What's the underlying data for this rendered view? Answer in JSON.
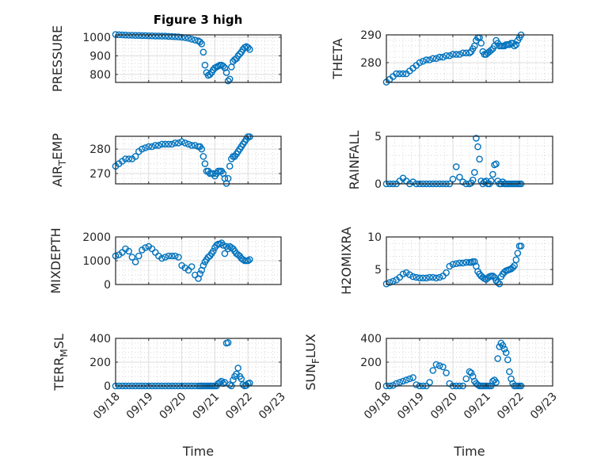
{
  "chart_data": {
    "type": "scatter",
    "title": "Figure 3 high",
    "xlabel": "Time",
    "x_tick_labels": [
      "09/18",
      "09/19",
      "09/20",
      "09/21",
      "09/22",
      "09/23"
    ],
    "x_ticks_days_from_0918": [
      0,
      1,
      2,
      3,
      4,
      5
    ],
    "xlim_days": [
      0,
      5
    ],
    "grid": "on (major + minor)",
    "marker": "open circle",
    "color": "#0072BD",
    "t_days": [
      0,
      0.1,
      0.2,
      0.3,
      0.4,
      0.5,
      0.6,
      0.7,
      0.8,
      0.9,
      1.0,
      1.1,
      1.2,
      1.3,
      1.4,
      1.5,
      1.6,
      1.7,
      1.8,
      1.9,
      2.0,
      2.1,
      2.2,
      2.3,
      2.4,
      2.5,
      2.55,
      2.6,
      2.65,
      2.7,
      2.75,
      2.8,
      2.85,
      2.9,
      2.95,
      3.0,
      3.05,
      3.1,
      3.15,
      3.2,
      3.25,
      3.3,
      3.35,
      3.4,
      3.45,
      3.5,
      3.55,
      3.6,
      3.65,
      3.7,
      3.75,
      3.8,
      3.85,
      3.9,
      3.95,
      4.0,
      4.05
    ],
    "axes": [
      {
        "ylabel": "PRESSURE",
        "ylim": [
          757,
          1013
        ],
        "yticks": [
          800,
          900,
          1000
        ],
        "ytick_labels": [
          "800",
          "900",
          "1000"
        ],
        "values": [
          1015,
          1014,
          1013,
          1012,
          1011,
          1011,
          1010,
          1010,
          1009,
          1009,
          1008,
          1008,
          1007,
          1007,
          1006,
          1006,
          1005,
          1004,
          1003,
          1002,
          1000,
          998,
          995,
          990,
          985,
          980,
          975,
          965,
          920,
          850,
          810,
          795,
          800,
          810,
          825,
          835,
          840,
          845,
          850,
          850,
          845,
          835,
          810,
          765,
          775,
          840,
          870,
          880,
          885,
          900,
          910,
          920,
          935,
          945,
          950,
          945,
          935
        ]
      },
      {
        "ylabel": "THETA",
        "ylim": [
          272.9,
          290
        ],
        "yticks": [
          280,
          290
        ],
        "ytick_labels": [
          "280",
          "290"
        ],
        "values": [
          273,
          274,
          275,
          276,
          276,
          276,
          276,
          277,
          278,
          279,
          280,
          280.5,
          281,
          281,
          281.5,
          281.5,
          282,
          282,
          282.5,
          282.5,
          283,
          283,
          283,
          283.5,
          283.5,
          283.5,
          284,
          285,
          286,
          288,
          289,
          289,
          287,
          284,
          283,
          283,
          283.5,
          284,
          284.5,
          285,
          286,
          288,
          287,
          286,
          286,
          286,
          286,
          286.5,
          286.5,
          286.5,
          287,
          287,
          286,
          286.5,
          288,
          289,
          290
        ]
      },
      {
        "ylabel": "AIR_TEMP",
        "ylim": [
          265.8,
          285.2
        ],
        "yticks": [
          270,
          280
        ],
        "ytick_labels": [
          "270",
          "280"
        ],
        "values": [
          273,
          274,
          275,
          276,
          276,
          276,
          277,
          279,
          280,
          280.5,
          281,
          281,
          281.5,
          281.5,
          282,
          282,
          282,
          282,
          282.5,
          282.5,
          283,
          282.5,
          282,
          281.5,
          281.5,
          281,
          281,
          280,
          277,
          274,
          271,
          271,
          270,
          270,
          270,
          269,
          270,
          271,
          271,
          271,
          270,
          268,
          266,
          268,
          273,
          276,
          277,
          277,
          278,
          279,
          280,
          281,
          282,
          283,
          284,
          285,
          285
        ]
      },
      {
        "ylabel": "RAINFALL",
        "ylim": [
          0,
          5
        ],
        "yticks": [
          0,
          5
        ],
        "ytick_labels": [
          "0",
          "5"
        ],
        "values": [
          0,
          0,
          0,
          0,
          0.3,
          0.6,
          0.3,
          0,
          0.2,
          0,
          0,
          0,
          0,
          0,
          0,
          0,
          0,
          0,
          0,
          0,
          0.5,
          1.8,
          0.7,
          0.2,
          0,
          0,
          0.1,
          0.4,
          1.2,
          4.8,
          3.9,
          2.6,
          0.3,
          0,
          0.2,
          0.3,
          0,
          0,
          0.3,
          1.0,
          2.0,
          2.1,
          0.3,
          0,
          0,
          0.2,
          0,
          0,
          0,
          0,
          0,
          0,
          0,
          0,
          0,
          0,
          0
        ]
      },
      {
        "ylabel": "MIXDEPTH",
        "ylim": [
          0,
          2000
        ],
        "yticks": [
          0,
          1000,
          2000
        ],
        "ytick_labels": [
          "0",
          "1000",
          "2000"
        ],
        "values": [
          1200,
          1250,
          1350,
          1500,
          1400,
          1150,
          950,
          1200,
          1450,
          1550,
          1600,
          1500,
          1350,
          1200,
          1100,
          1150,
          1200,
          1200,
          1200,
          1150,
          800,
          700,
          600,
          750,
          400,
          250,
          450,
          600,
          800,
          950,
          1050,
          1150,
          1200,
          1300,
          1400,
          1550,
          1650,
          1700,
          1700,
          1750,
          1650,
          1300,
          1600,
          1500,
          1600,
          1550,
          1500,
          1400,
          1300,
          1250,
          1200,
          1100,
          1050,
          1000,
          1000,
          1000,
          1050
        ]
      },
      {
        "ylabel": "H2OMIXRA",
        "ylim": [
          2.7,
          10
        ],
        "yticks": [
          5,
          10
        ],
        "ytick_labels": [
          "5",
          "10"
        ],
        "values": [
          2.8,
          3,
          3.2,
          3.4,
          3.8,
          4.3,
          4.5,
          4.2,
          3.9,
          3.8,
          3.7,
          3.7,
          3.7,
          3.8,
          3.8,
          3.7,
          3.8,
          4,
          4.5,
          5.5,
          5.8,
          5.9,
          6,
          6,
          6.1,
          6.1,
          6.1,
          6.2,
          6.2,
          5.5,
          4.7,
          4.3,
          4,
          3.8,
          3.6,
          3.5,
          3.7,
          3.9,
          4,
          4,
          3.8,
          3.3,
          3,
          2.8,
          3.9,
          4.3,
          4.6,
          4.8,
          4.9,
          5,
          5.1,
          5.3,
          5.6,
          6.5,
          7.5,
          8.6,
          8.6
        ]
      },
      {
        "ylabel": "TERR_MSL",
        "ylim": [
          0,
          400
        ],
        "yticks": [
          0,
          200,
          400
        ],
        "ytick_labels": [
          "0",
          "200",
          "400"
        ],
        "values": [
          0,
          0,
          0,
          0,
          0,
          0,
          0,
          0,
          0,
          0,
          0,
          0,
          0,
          0,
          0,
          0,
          0,
          0,
          0,
          0,
          0,
          0,
          0,
          0,
          0,
          0,
          0,
          0,
          0,
          0,
          0,
          0,
          0,
          0,
          0,
          0,
          0,
          20,
          30,
          40,
          20,
          30,
          360,
          365,
          10,
          0,
          50,
          80,
          100,
          150,
          80,
          60,
          10,
          0,
          5,
          20,
          25
        ]
      },
      {
        "ylabel": "SUN_FLUX",
        "ylim": [
          0,
          400
        ],
        "yticks": [
          0,
          200,
          400
        ],
        "ytick_labels": [
          "0",
          "200",
          "400"
        ],
        "values": [
          0,
          0,
          5,
          20,
          30,
          40,
          50,
          60,
          70,
          10,
          0,
          0,
          0,
          30,
          130,
          180,
          170,
          160,
          110,
          20,
          0,
          0,
          0,
          0,
          60,
          120,
          110,
          80,
          40,
          20,
          10,
          0,
          0,
          0,
          0,
          0,
          0,
          0,
          0,
          40,
          50,
          30,
          230,
          330,
          360,
          340,
          310,
          280,
          220,
          120,
          60,
          20,
          0,
          0,
          0,
          0,
          0
        ]
      }
    ]
  }
}
